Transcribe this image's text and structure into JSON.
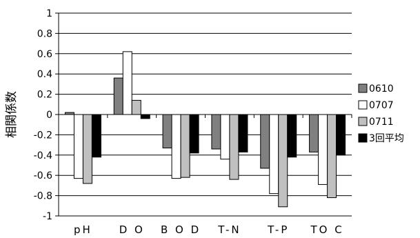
{
  "chart_data": {
    "type": "bar",
    "title": "",
    "xlabel": "",
    "ylabel": "相関係数",
    "ylim": [
      -1,
      1
    ],
    "yticks": [
      "1",
      "0.8",
      "0.6",
      "0.4",
      "0.2",
      "0",
      "-0.2",
      "-0.4",
      "-0.6",
      "-0.8",
      "-1"
    ],
    "grid": true,
    "legend_position": "right",
    "categories": [
      "pH",
      "D O",
      "B O D",
      "T-N",
      "T-P",
      "TO C"
    ],
    "series": [
      {
        "name": "0610",
        "color": "#808080",
        "values": [
          0.02,
          0.36,
          -0.33,
          -0.34,
          -0.53,
          -0.37
        ]
      },
      {
        "name": "0707",
        "color": "#ffffff",
        "values": [
          -0.63,
          0.62,
          -0.63,
          -0.44,
          -0.78,
          -0.69
        ]
      },
      {
        "name": "0711",
        "color": "#c0c0c0",
        "values": [
          -0.68,
          0.14,
          -0.62,
          -0.64,
          -0.91,
          -0.82
        ]
      },
      {
        "name": "3回平均",
        "color": "#000000",
        "values": [
          -0.42,
          -0.04,
          -0.38,
          -0.37,
          -0.42,
          -0.4
        ]
      }
    ]
  }
}
